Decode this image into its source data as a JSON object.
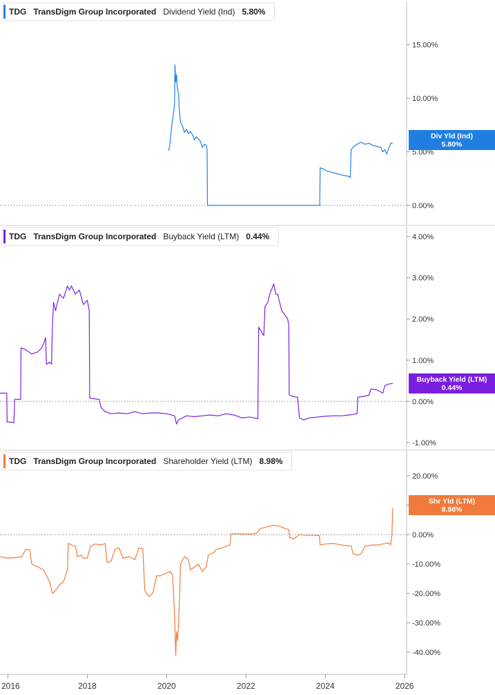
{
  "chart_data": [
    {
      "type": "line",
      "ticker": "TDG",
      "company": "TransDigm Group Incorporated",
      "metric": "Dividend Yield (Ind)",
      "current_value": "5.80%",
      "tag_label": "Div Yld (Ind)",
      "color": "#1f7fe0",
      "ylim": [
        0,
        18
      ],
      "yticks": [
        0,
        5,
        10,
        15
      ],
      "ytick_labels": [
        "0.00%",
        "5.00%",
        "10.00%",
        "15.00%"
      ],
      "points": [
        [
          2020.05,
          5.1
        ],
        [
          2020.08,
          5.6
        ],
        [
          2020.1,
          6.4
        ],
        [
          2020.13,
          7.5
        ],
        [
          2020.17,
          8.5
        ],
        [
          2020.2,
          9.4
        ],
        [
          2020.21,
          13.1
        ],
        [
          2020.23,
          11.5
        ],
        [
          2020.25,
          12.2
        ],
        [
          2020.27,
          11.0
        ],
        [
          2020.3,
          10.4
        ],
        [
          2020.32,
          8.9
        ],
        [
          2020.35,
          7.8
        ],
        [
          2020.4,
          7.4
        ],
        [
          2020.45,
          6.8
        ],
        [
          2020.5,
          7.1
        ],
        [
          2020.55,
          6.7
        ],
        [
          2020.6,
          6.9
        ],
        [
          2020.65,
          6.6
        ],
        [
          2020.7,
          6.1
        ],
        [
          2020.75,
          6.4
        ],
        [
          2020.8,
          6.2
        ],
        [
          2020.85,
          6.0
        ],
        [
          2020.9,
          5.4
        ],
        [
          2020.95,
          5.7
        ],
        [
          2021.0,
          5.6
        ],
        [
          2021.02,
          5.2
        ],
        [
          2021.03,
          0.0
        ],
        [
          2023.86,
          0.0
        ],
        [
          2023.87,
          3.5
        ],
        [
          2023.95,
          3.4
        ],
        [
          2024.05,
          3.2
        ],
        [
          2024.15,
          3.1
        ],
        [
          2024.25,
          3.0
        ],
        [
          2024.35,
          2.9
        ],
        [
          2024.45,
          2.8
        ],
        [
          2024.55,
          2.75
        ],
        [
          2024.63,
          2.6
        ],
        [
          2024.65,
          5.2
        ],
        [
          2024.72,
          5.5
        ],
        [
          2024.8,
          5.7
        ],
        [
          2024.9,
          5.9
        ],
        [
          2025.0,
          5.7
        ],
        [
          2025.1,
          5.8
        ],
        [
          2025.2,
          5.6
        ],
        [
          2025.3,
          5.5
        ],
        [
          2025.4,
          5.4
        ],
        [
          2025.45,
          5.0
        ],
        [
          2025.5,
          5.2
        ],
        [
          2025.55,
          4.8
        ],
        [
          2025.6,
          5.3
        ],
        [
          2025.65,
          5.8
        ],
        [
          2025.7,
          5.8
        ]
      ]
    },
    {
      "type": "line",
      "ticker": "TDG",
      "company": "TransDigm Group Incorporated",
      "metric": "Buyback Yield (LTM)",
      "current_value": "0.44%",
      "tag_label": "Buyback Yield (LTM)",
      "color": "#7a1fe0",
      "ylim": [
        -1.1,
        4.1
      ],
      "yticks": [
        -1,
        0,
        1,
        2,
        3,
        4
      ],
      "ytick_labels": [
        "-1.00%",
        "0.00%",
        "1.00%",
        "2.00%",
        "3.00%",
        "4.00%"
      ],
      "points": [
        [
          2015.8,
          0.2
        ],
        [
          2015.97,
          0.2
        ],
        [
          2015.98,
          -0.5
        ],
        [
          2016.05,
          -0.5
        ],
        [
          2016.15,
          -0.52
        ],
        [
          2016.17,
          0.05
        ],
        [
          2016.32,
          0.05
        ],
        [
          2016.33,
          1.3
        ],
        [
          2016.45,
          1.25
        ],
        [
          2016.6,
          1.15
        ],
        [
          2016.75,
          1.2
        ],
        [
          2016.85,
          1.3
        ],
        [
          2016.92,
          1.45
        ],
        [
          2016.95,
          1.55
        ],
        [
          2016.97,
          0.9
        ],
        [
          2017.05,
          0.95
        ],
        [
          2017.1,
          0.9
        ],
        [
          2017.12,
          1.8
        ],
        [
          2017.15,
          2.4
        ],
        [
          2017.2,
          2.2
        ],
        [
          2017.3,
          2.6
        ],
        [
          2017.4,
          2.5
        ],
        [
          2017.5,
          2.8
        ],
        [
          2017.55,
          2.7
        ],
        [
          2017.6,
          2.8
        ],
        [
          2017.7,
          2.6
        ],
        [
          2017.8,
          2.7
        ],
        [
          2017.9,
          2.35
        ],
        [
          2018.0,
          2.45
        ],
        [
          2018.05,
          2.2
        ],
        [
          2018.06,
          0.08
        ],
        [
          2018.2,
          0.06
        ],
        [
          2018.3,
          0.05
        ],
        [
          2018.35,
          -0.15
        ],
        [
          2018.45,
          -0.25
        ],
        [
          2018.6,
          -0.3
        ],
        [
          2018.8,
          -0.28
        ],
        [
          2019.0,
          -0.3
        ],
        [
          2019.2,
          -0.25
        ],
        [
          2019.4,
          -0.3
        ],
        [
          2019.6,
          -0.28
        ],
        [
          2019.8,
          -0.28
        ],
        [
          2020.0,
          -0.3
        ],
        [
          2020.2,
          -0.35
        ],
        [
          2020.25,
          -0.55
        ],
        [
          2020.3,
          -0.45
        ],
        [
          2020.4,
          -0.4
        ],
        [
          2020.5,
          -0.35
        ],
        [
          2020.7,
          -0.37
        ],
        [
          2020.9,
          -0.35
        ],
        [
          2021.1,
          -0.33
        ],
        [
          2021.3,
          -0.35
        ],
        [
          2021.5,
          -0.3
        ],
        [
          2021.7,
          -0.33
        ],
        [
          2021.9,
          -0.4
        ],
        [
          2022.1,
          -0.38
        ],
        [
          2022.3,
          -0.42
        ],
        [
          2022.32,
          1.8
        ],
        [
          2022.35,
          1.75
        ],
        [
          2022.45,
          1.6
        ],
        [
          2022.48,
          2.3
        ],
        [
          2022.55,
          2.4
        ],
        [
          2022.6,
          2.6
        ],
        [
          2022.7,
          2.85
        ],
        [
          2022.75,
          2.6
        ],
        [
          2022.8,
          2.6
        ],
        [
          2022.9,
          2.2
        ],
        [
          2022.98,
          2.1
        ],
        [
          2023.05,
          2.0
        ],
        [
          2023.08,
          1.85
        ],
        [
          2023.09,
          0.15
        ],
        [
          2023.2,
          0.12
        ],
        [
          2023.3,
          0.1
        ],
        [
          2023.35,
          -0.4
        ],
        [
          2023.45,
          -0.45
        ],
        [
          2023.6,
          -0.4
        ],
        [
          2023.8,
          -0.38
        ],
        [
          2024.0,
          -0.36
        ],
        [
          2024.2,
          -0.35
        ],
        [
          2024.4,
          -0.35
        ],
        [
          2024.6,
          -0.33
        ],
        [
          2024.8,
          -0.3
        ],
        [
          2024.82,
          0.1
        ],
        [
          2024.95,
          0.12
        ],
        [
          2025.1,
          0.15
        ],
        [
          2025.15,
          0.3
        ],
        [
          2025.3,
          0.28
        ],
        [
          2025.45,
          0.2
        ],
        [
          2025.5,
          0.38
        ],
        [
          2025.6,
          0.42
        ],
        [
          2025.7,
          0.44
        ]
      ]
    },
    {
      "type": "line",
      "ticker": "TDG",
      "company": "TransDigm Group Incorporated",
      "metric": "Shareholder Yield (LTM)",
      "current_value": "8.98%",
      "tag_label": "Shr Yld (LTM)",
      "color": "#f07a3c",
      "ylim": [
        -47,
        24
      ],
      "yticks": [
        -40,
        -30,
        -20,
        -10,
        0,
        10,
        20
      ],
      "ytick_labels": [
        "-40.00%",
        "-30.00%",
        "-20.00%",
        "-10.00%",
        "0.00%",
        "10.00%",
        "20.00%"
      ],
      "points": [
        [
          2015.8,
          -7.5
        ],
        [
          2016.0,
          -8.0
        ],
        [
          2016.2,
          -7.8
        ],
        [
          2016.35,
          -7.5
        ],
        [
          2016.45,
          -5.0
        ],
        [
          2016.55,
          -5.2
        ],
        [
          2016.6,
          -10.0
        ],
        [
          2016.75,
          -11.0
        ],
        [
          2016.9,
          -12.0
        ],
        [
          2017.05,
          -16.0
        ],
        [
          2017.12,
          -20.0
        ],
        [
          2017.2,
          -19.0
        ],
        [
          2017.3,
          -17.0
        ],
        [
          2017.4,
          -16.0
        ],
        [
          2017.5,
          -12.0
        ],
        [
          2017.52,
          -3.0
        ],
        [
          2017.6,
          -3.5
        ],
        [
          2017.7,
          -4.0
        ],
        [
          2017.75,
          -7.5
        ],
        [
          2017.85,
          -7.0
        ],
        [
          2017.9,
          -8.0
        ],
        [
          2018.0,
          -8.0
        ],
        [
          2018.08,
          -4.0
        ],
        [
          2018.2,
          -3.2
        ],
        [
          2018.35,
          -3.5
        ],
        [
          2018.45,
          -3.0
        ],
        [
          2018.5,
          -9.5
        ],
        [
          2018.6,
          -9.0
        ],
        [
          2018.7,
          -5.0
        ],
        [
          2018.8,
          -4.5
        ],
        [
          2018.9,
          -8.0
        ],
        [
          2019.05,
          -7.5
        ],
        [
          2019.2,
          -8.5
        ],
        [
          2019.3,
          -4.5
        ],
        [
          2019.4,
          -4.8
        ],
        [
          2019.45,
          -19.0
        ],
        [
          2019.55,
          -21.0
        ],
        [
          2019.65,
          -20.0
        ],
        [
          2019.75,
          -14.0
        ],
        [
          2019.85,
          -14.0
        ],
        [
          2020.0,
          -13.0
        ],
        [
          2020.1,
          -12.5
        ],
        [
          2020.15,
          -14.0
        ],
        [
          2020.2,
          -27.0
        ],
        [
          2020.23,
          -41.0
        ],
        [
          2020.25,
          -33.0
        ],
        [
          2020.28,
          -36.0
        ],
        [
          2020.32,
          -24.0
        ],
        [
          2020.35,
          -10.0
        ],
        [
          2020.45,
          -7.5
        ],
        [
          2020.55,
          -8.5
        ],
        [
          2020.6,
          -12.0
        ],
        [
          2020.7,
          -11.0
        ],
        [
          2020.8,
          -10.0
        ],
        [
          2020.9,
          -12.5
        ],
        [
          2021.0,
          -11.0
        ],
        [
          2021.05,
          -7.0
        ],
        [
          2021.2,
          -6.0
        ],
        [
          2021.25,
          -5.0
        ],
        [
          2021.4,
          -4.5
        ],
        [
          2021.5,
          -4.0
        ],
        [
          2021.6,
          -3.5
        ],
        [
          2021.62,
          0.2
        ],
        [
          2021.8,
          0.3
        ],
        [
          2022.0,
          0.2
        ],
        [
          2022.2,
          0.2
        ],
        [
          2022.3,
          0.8
        ],
        [
          2022.35,
          2.0
        ],
        [
          2022.5,
          2.5
        ],
        [
          2022.7,
          3.2
        ],
        [
          2022.85,
          2.8
        ],
        [
          2023.0,
          2.0
        ],
        [
          2023.08,
          1.8
        ],
        [
          2023.1,
          -1.0
        ],
        [
          2023.2,
          -1.5
        ],
        [
          2023.35,
          0.0
        ],
        [
          2023.5,
          -0.2
        ],
        [
          2023.7,
          -0.2
        ],
        [
          2023.85,
          -0.3
        ],
        [
          2023.87,
          -3.5
        ],
        [
          2024.0,
          -3.2
        ],
        [
          2024.2,
          -3.0
        ],
        [
          2024.4,
          -3.5
        ],
        [
          2024.55,
          -3.8
        ],
        [
          2024.65,
          -3.8
        ],
        [
          2024.7,
          -6.5
        ],
        [
          2024.8,
          -7.0
        ],
        [
          2024.9,
          -6.5
        ],
        [
          2025.0,
          -4.0
        ],
        [
          2025.2,
          -3.5
        ],
        [
          2025.35,
          -3.5
        ],
        [
          2025.5,
          -3.0
        ],
        [
          2025.6,
          -2.8
        ],
        [
          2025.65,
          -3.5
        ],
        [
          2025.68,
          0.0
        ],
        [
          2025.7,
          8.98
        ]
      ]
    }
  ],
  "x_axis": {
    "range": [
      2015.8,
      2026.05
    ],
    "ticks": [
      2016,
      2018,
      2020,
      2022,
      2024,
      2026
    ],
    "tick_labels": [
      "2016",
      "2018",
      "2020",
      "2022",
      "2024",
      "2026"
    ]
  }
}
